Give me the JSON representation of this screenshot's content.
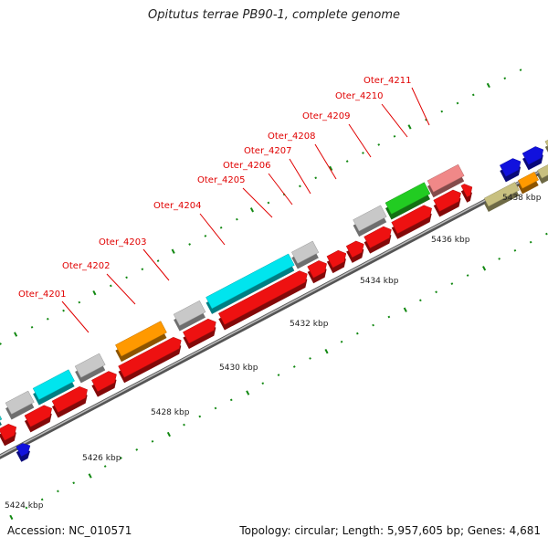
{
  "title": "Opitutus terrae PB90-1, complete genome",
  "accession": "Accession: NC_010571",
  "stats": "Topology: circular; Length: 5,957,605 bp; Genes: 4,681",
  "scale_labels": [
    "5424 kbp",
    "5426 kbp",
    "5428 kbp",
    "5430 kbp",
    "5432 kbp",
    "5434 kbp",
    "5436 kbp",
    "5438 kbp"
  ],
  "gene_labels": [
    "Oter_4201",
    "Oter_4202",
    "Oter_4203",
    "Oter_4204",
    "Oter_4205",
    "Oter_4206",
    "Oter_4207",
    "Oter_4208",
    "Oter_4209",
    "Oter_4210",
    "Oter_4211"
  ],
  "colors": {
    "cds_red": "#ee1111",
    "cyan": "#00e5ee",
    "gray": "#c8c8c8",
    "orange": "#ff9900",
    "green": "#22cc22",
    "pink": "#f08888",
    "blue": "#1111dd",
    "khaki": "#c8c080",
    "teal": "#22cccc",
    "tick_green": "#118811",
    "backbone": "#777777",
    "label_red": "#e00000"
  }
}
